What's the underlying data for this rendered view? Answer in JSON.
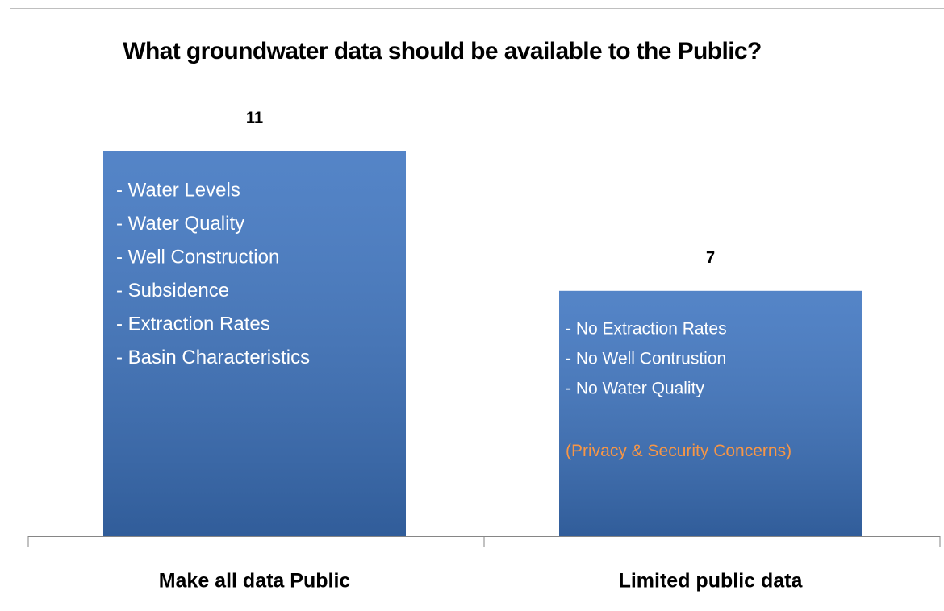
{
  "chart_data": {
    "type": "bar",
    "title": "What groundwater data should be available to the Public?",
    "categories": [
      "Make all data Public",
      "Limited public data"
    ],
    "values": [
      11,
      7
    ],
    "color": "#3d74c0",
    "annotations": [
      {
        "lines": [
          "- Water Levels",
          "- Water Quality",
          "- Well Construction",
          "- Subsidence",
          "- Extraction Rates",
          "- Basin Characteristics"
        ]
      },
      {
        "lines": [
          "- No Extraction Rates",
          "- No Well Contrustion",
          "- No Water Quality"
        ],
        "note": "(Privacy & Security Concerns)"
      }
    ],
    "annotation_color": "#ffffff",
    "note_color": "#f79646"
  }
}
